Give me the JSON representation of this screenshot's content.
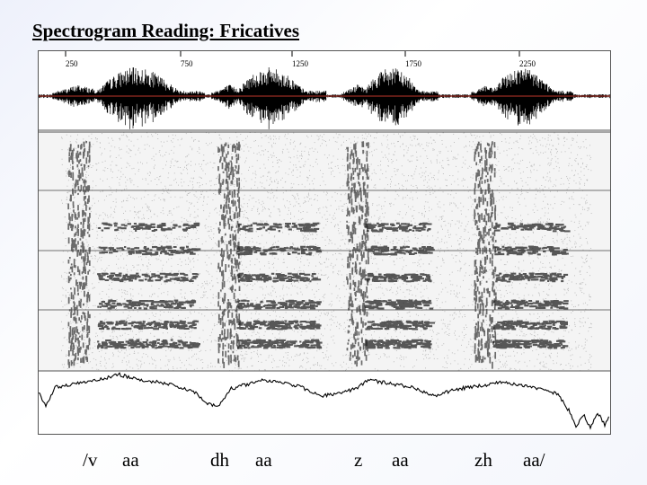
{
  "slide": {
    "title": "Spectrogram Reading: Fricatives"
  },
  "time_axis": {
    "ticks": [
      "250",
      "750",
      "1250",
      "1750",
      "2250"
    ]
  },
  "phonemes": [
    {
      "label": "/v",
      "key": "v"
    },
    {
      "label": "aa",
      "key": "aa"
    },
    {
      "label": "dh",
      "key": "dh"
    },
    {
      "label": "aa",
      "key": "aa"
    },
    {
      "label": "z",
      "key": "z"
    },
    {
      "label": "aa",
      "key": "aa"
    },
    {
      "label": "zh",
      "key": "zh"
    },
    {
      "label": "aa/",
      "key": "aa"
    }
  ],
  "colors": {
    "waveform": "#000000",
    "baseline": "#c0392b",
    "spectrogram_ink": "#1a1a1a",
    "grid": "#444444",
    "frame": "#555555"
  },
  "figure_panels": [
    "waveform",
    "spectrogram",
    "energy-contour"
  ]
}
